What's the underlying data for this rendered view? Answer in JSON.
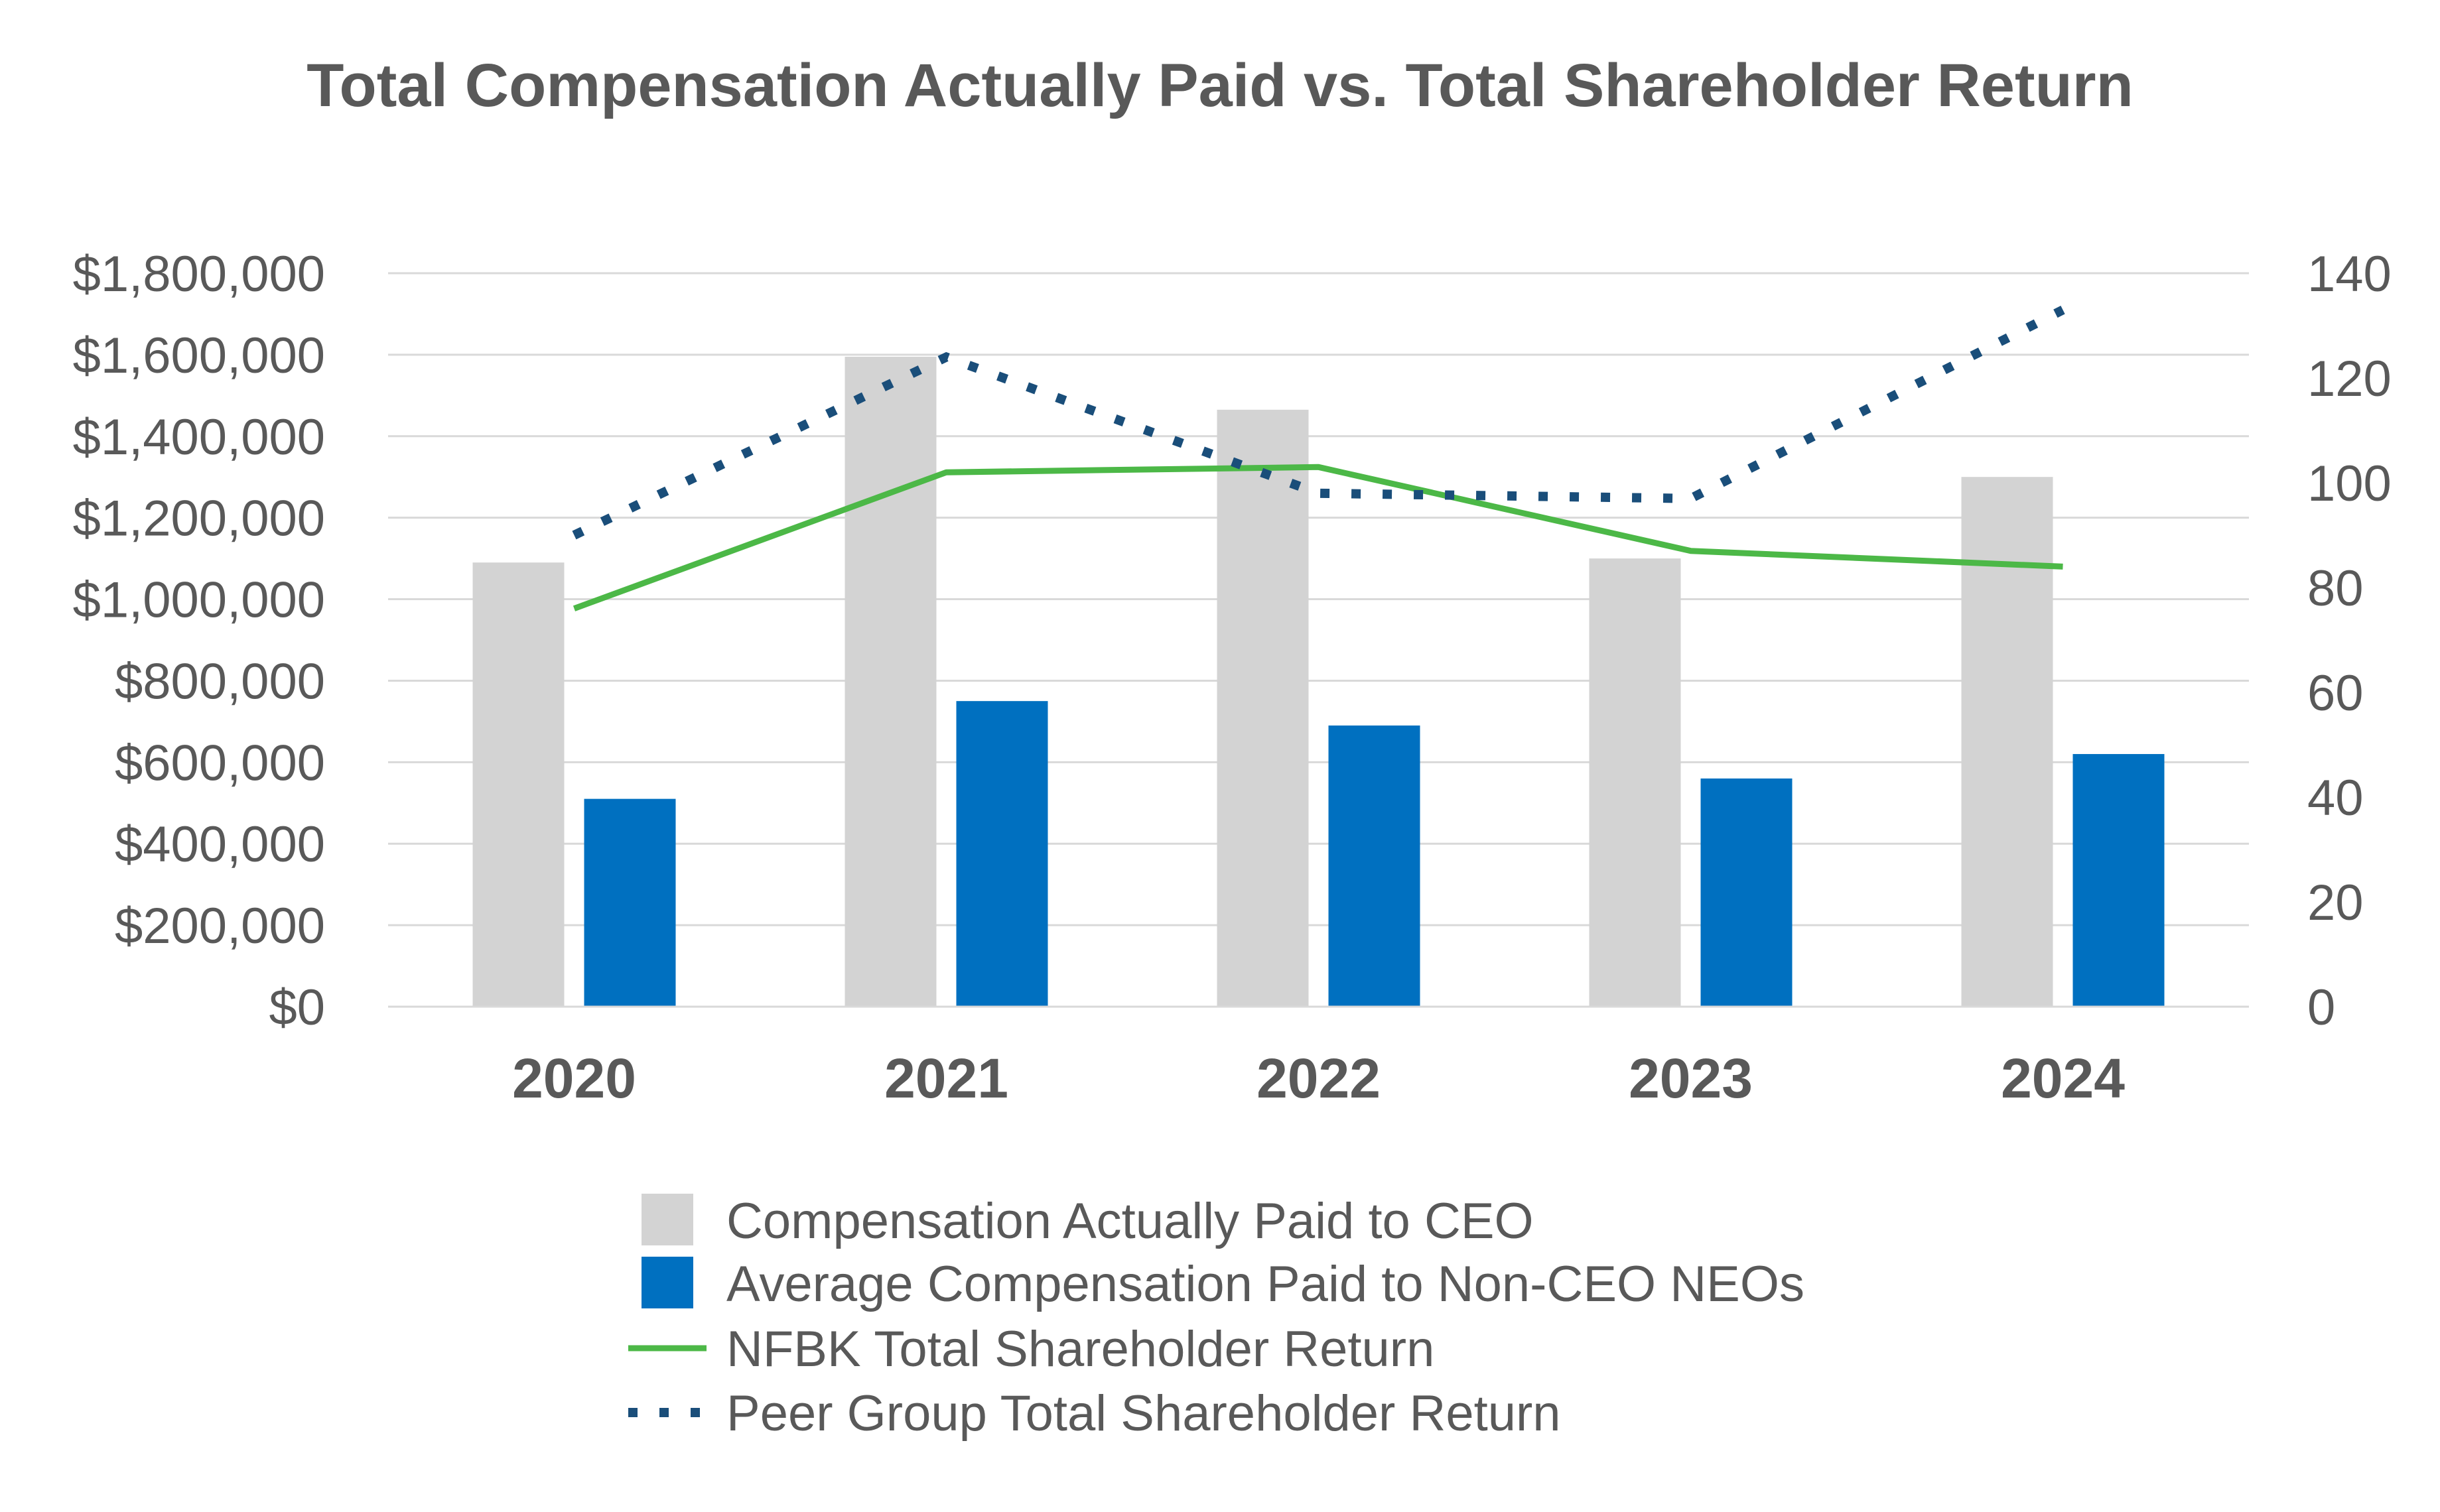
{
  "chart_data": {
    "type": "bar",
    "title": "Total Compensation Actually Paid vs. Total Shareholder Return",
    "categories": [
      "2020",
      "2021",
      "2022",
      "2023",
      "2024"
    ],
    "y_left": {
      "ylim": [
        0,
        1800000
      ],
      "tick_labels": [
        "$0",
        "$200,000",
        "$400,000",
        "$600,000",
        "$800,000",
        "$1,000,000",
        "$1,200,000",
        "$1,400,000",
        "$1,600,000",
        "$1,800,000"
      ],
      "tick_values": [
        0,
        200000,
        400000,
        600000,
        800000,
        1000000,
        1200000,
        1400000,
        1600000,
        1800000
      ]
    },
    "y_right": {
      "ylim": [
        0,
        140
      ],
      "tick_labels": [
        "0",
        "20",
        "40",
        "60",
        "80",
        "100",
        "120",
        "140"
      ],
      "tick_values": [
        0,
        20,
        40,
        60,
        80,
        100,
        120,
        140
      ]
    },
    "grid": true,
    "legend_position": "bottom",
    "series": [
      {
        "name": "Compensation Actually Paid to CEO",
        "kind": "bar",
        "axis": "left",
        "color": "#d3d3d3",
        "values": [
          1090000,
          1595000,
          1465000,
          1100000,
          1300000
        ]
      },
      {
        "name": "Average Compensation Paid to Non-CEO NEOs",
        "kind": "bar",
        "axis": "left",
        "color": "#0070c0",
        "values": [
          510000,
          750000,
          690000,
          560000,
          620000
        ]
      },
      {
        "name": "NFBK Total Shareholder Return",
        "kind": "line",
        "style": "solid",
        "axis": "right",
        "color": "#4cb847",
        "values": [
          76,
          102,
          103,
          87,
          84
        ]
      },
      {
        "name": "Peer Group Total Shareholder Return",
        "kind": "line",
        "style": "dotted",
        "axis": "right",
        "color": "#1a4e7a",
        "values": [
          90,
          124,
          98,
          97,
          133
        ]
      }
    ]
  }
}
